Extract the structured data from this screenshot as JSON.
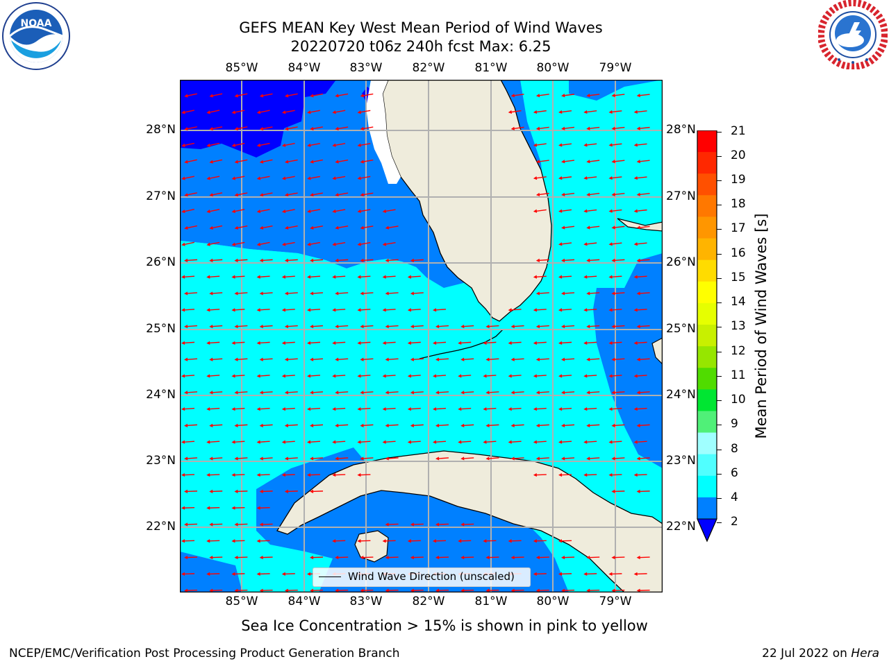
{
  "header": {
    "title_line1": "GEFS MEAN Key West Mean Period of Wind Waves",
    "title_line2": "20220720 t06z 240h fcst   Max: 6.25"
  },
  "logos": {
    "left": {
      "name": "noaa-logo",
      "text": "NOAA",
      "ring_text": "NATIONAL OCEANIC AND ATMOSPHERIC ADMINISTRATION · U.S. DEPARTMENT OF COMMERCE"
    },
    "right": {
      "name": "nws-logo",
      "ring_text": "NATIONAL WEATHER SERVICE"
    }
  },
  "map": {
    "lon_labels": [
      "85°W",
      "84°W",
      "83°W",
      "82°W",
      "81°W",
      "80°W",
      "79°W"
    ],
    "lat_labels": [
      "28°N",
      "27°N",
      "26°N",
      "25°N",
      "24°N",
      "23°N",
      "22°N"
    ],
    "legend_label": "Wind Wave Direction (unscaled)",
    "arrow_color": "#ff0000",
    "land_color": "#efecdc",
    "grid_color": "#b0b0b0"
  },
  "colorbar": {
    "label": "Mean Period of Wind Waves [s]",
    "ticks": [
      "21",
      "20",
      "19",
      "18",
      "17",
      "16",
      "15",
      "14",
      "13",
      "12",
      "11",
      "10",
      "9",
      "8",
      "6",
      "4",
      "2"
    ],
    "colors_top_to_bottom": [
      "#ff0000",
      "#ff2800",
      "#ff5000",
      "#ff7800",
      "#ff9600",
      "#ffb400",
      "#ffdc00",
      "#ffff00",
      "#e6ff00",
      "#c8f000",
      "#96e600",
      "#50dc00",
      "#00e632",
      "#50f078",
      "#a0ffff",
      "#50ffff",
      "#00ffff",
      "#0080ff"
    ],
    "under_color": "#0000ff"
  },
  "notes": {
    "sea_ice": "Sea Ice Concentration > 15% is shown in pink to yellow"
  },
  "footer": {
    "left": "NCEP/EMC/Verification Post Processing Product Generation Branch",
    "right_prefix": "22 Jul 2022 on ",
    "right_host": "Hera"
  }
}
